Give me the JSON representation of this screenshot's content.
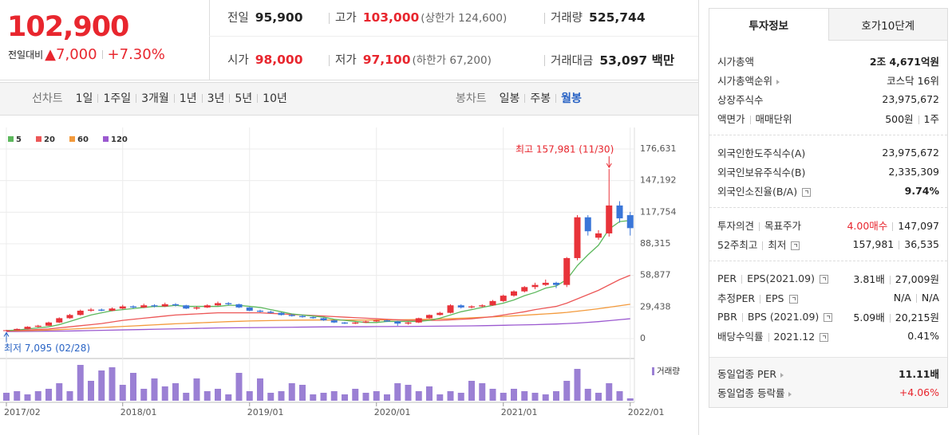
{
  "header": {
    "price": "102,900",
    "change_label": "전일대비",
    "change": "▲7,000",
    "change_pct": "+7.30%",
    "up_color": "#e8262e",
    "cells": [
      [
        {
          "label": "전일",
          "value": "95,900",
          "color": "#222"
        },
        {
          "label": "고가",
          "value": "103,000",
          "sub": "(상한가 124,600)",
          "color": "#e8262e"
        },
        {
          "label": "거래량",
          "value": "525,744",
          "color": "#222"
        }
      ],
      [
        {
          "label": "시가",
          "value": "98,000",
          "color": "#e8262e"
        },
        {
          "label": "저가",
          "value": "97,100",
          "sub": "(하한가 67,200)",
          "color": "#e8262e"
        },
        {
          "label": "거래대금",
          "value": "53,097 백만",
          "color": "#222"
        }
      ]
    ]
  },
  "toolbar": {
    "line_label": "선차트",
    "line_periods": [
      "1일",
      "1주일",
      "3개월",
      "1년",
      "3년",
      "5년",
      "10년"
    ],
    "candle_label": "봉차트",
    "candle_periods": [
      "일봉",
      "주봉",
      "월봉"
    ],
    "active_candle": 2
  },
  "side": {
    "tabs": [
      "투자정보",
      "호가10단계"
    ],
    "active_tab": 0,
    "sections": [
      [
        {
          "label": [
            "시가총액"
          ],
          "value": [
            "2조 4,671억원"
          ],
          "bold": true
        },
        {
          "label": [
            "시가총액순위"
          ],
          "arrow": true,
          "value": [
            "코스닥 16위"
          ]
        },
        {
          "label": [
            "상장주식수"
          ],
          "value": [
            "23,975,672"
          ]
        },
        {
          "label": [
            "액면가",
            "매매단위"
          ],
          "value": [
            "500원",
            "1주"
          ]
        }
      ],
      [
        {
          "label": [
            "외국인한도주식수(A)"
          ],
          "value": [
            "23,975,672"
          ]
        },
        {
          "label": [
            "외국인보유주식수(B)"
          ],
          "value": [
            "2,335,309"
          ]
        },
        {
          "label": [
            "외국인소진율(B/A)"
          ],
          "help": true,
          "value": [
            "9.74%"
          ],
          "bold": true
        }
      ],
      [
        {
          "label": [
            "투자의견",
            "목표주가"
          ],
          "value": [
            "4.00매수",
            "147,097"
          ],
          "color": "#e8262e"
        },
        {
          "label": [
            "52주최고",
            "최저"
          ],
          "help": true,
          "value": [
            "157,981",
            "36,535"
          ]
        }
      ],
      [
        {
          "label": [
            "PER",
            "EPS(2021.09)"
          ],
          "help": true,
          "value": [
            "3.81배",
            "27,009원"
          ]
        },
        {
          "label": [
            "추정PER",
            "EPS"
          ],
          "help": true,
          "value": [
            "N/A",
            "N/A"
          ]
        },
        {
          "label": [
            "PBR",
            "BPS (2021.09)"
          ],
          "help": true,
          "value": [
            "5.09배",
            "20,215원"
          ]
        },
        {
          "label": [
            "배당수익률",
            "2021.12"
          ],
          "help": true,
          "value": [
            "0.41%"
          ]
        }
      ]
    ],
    "footer": [
      {
        "label": [
          "동일업종 PER"
        ],
        "arrow": true,
        "value": [
          "11.11배"
        ],
        "bold": true
      },
      {
        "label": [
          "동일업종 등락률"
        ],
        "arrow": true,
        "value": [
          "+4.06%"
        ],
        "color": "#e8262e"
      }
    ]
  },
  "chart_data": {
    "type": "candlestick",
    "categories": [
      "2017/02",
      null,
      null,
      null,
      null,
      null,
      null,
      null,
      null,
      null,
      null,
      "2018/01",
      null,
      null,
      null,
      null,
      null,
      null,
      null,
      null,
      null,
      null,
      null,
      "2019/01",
      null,
      null,
      null,
      null,
      null,
      null,
      null,
      null,
      null,
      null,
      null,
      "2020/01",
      null,
      null,
      null,
      null,
      null,
      null,
      null,
      null,
      null,
      null,
      null,
      "2021/01",
      null,
      null,
      null,
      null,
      null,
      null,
      null,
      null,
      null,
      null,
      null,
      "2022/01"
    ],
    "candles": [
      [
        7500,
        8200,
        7095,
        7800
      ],
      [
        7800,
        9500,
        7600,
        9000
      ],
      [
        9000,
        11500,
        8800,
        11000
      ],
      [
        11000,
        12800,
        10500,
        12000
      ],
      [
        12000,
        15800,
        11800,
        15000
      ],
      [
        15000,
        19800,
        14500,
        19000
      ],
      [
        19000,
        23000,
        18500,
        22000
      ],
      [
        22000,
        27000,
        21500,
        26000
      ],
      [
        26000,
        28500,
        25000,
        27000
      ],
      [
        27000,
        28000,
        25500,
        26000
      ],
      [
        26000,
        29000,
        25500,
        28000
      ],
      [
        28000,
        31500,
        27500,
        30000
      ],
      [
        30000,
        31000,
        28000,
        29000
      ],
      [
        29000,
        32500,
        28500,
        31000
      ],
      [
        31000,
        32000,
        29000,
        30000
      ],
      [
        30000,
        33500,
        29500,
        32000
      ],
      [
        32000,
        33000,
        30000,
        31000
      ],
      [
        31000,
        31500,
        27500,
        28000
      ],
      [
        28000,
        30000,
        27000,
        29000
      ],
      [
        29000,
        32000,
        28500,
        31000
      ],
      [
        31000,
        34500,
        30500,
        33000
      ],
      [
        33000,
        34000,
        31000,
        32000
      ],
      [
        32000,
        32500,
        28500,
        29000
      ],
      [
        29000,
        29500,
        25500,
        26000
      ],
      [
        26000,
        27000,
        24500,
        25000
      ],
      [
        25000,
        26000,
        23500,
        24000
      ],
      [
        24000,
        24500,
        21500,
        22000
      ],
      [
        22000,
        23000,
        20500,
        21000
      ],
      [
        21000,
        22000,
        19500,
        20000
      ],
      [
        20000,
        20500,
        18500,
        19000
      ],
      [
        19000,
        19500,
        16500,
        17000
      ],
      [
        17000,
        17500,
        14500,
        15000
      ],
      [
        15000,
        15500,
        13500,
        14000
      ],
      [
        14000,
        15500,
        13500,
        15000
      ],
      [
        15000,
        16500,
        14500,
        16000
      ],
      [
        16000,
        17500,
        15500,
        17000
      ],
      [
        17000,
        17500,
        15500,
        16000
      ],
      [
        16000,
        16500,
        12000,
        14000
      ],
      [
        14000,
        15500,
        13000,
        15000
      ],
      [
        15000,
        19500,
        14500,
        19000
      ],
      [
        19000,
        22500,
        18500,
        22000
      ],
      [
        22000,
        25000,
        21500,
        24000
      ],
      [
        24000,
        32000,
        23500,
        31000
      ],
      [
        31000,
        32000,
        28000,
        29000
      ],
      [
        29000,
        31000,
        28000,
        30000
      ],
      [
        30000,
        32000,
        29000,
        31000
      ],
      [
        31000,
        36000,
        30500,
        35000
      ],
      [
        35000,
        41000,
        34000,
        40000
      ],
      [
        40000,
        45000,
        39000,
        44000
      ],
      [
        44000,
        49000,
        43000,
        48000
      ],
      [
        48000,
        52000,
        46000,
        50000
      ],
      [
        50000,
        55000,
        49000,
        52000
      ],
      [
        52000,
        53000,
        47000,
        50000
      ],
      [
        50000,
        76000,
        48000,
        75000
      ],
      [
        75000,
        115000,
        73000,
        113000
      ],
      [
        113000,
        115000,
        96000,
        100000
      ],
      [
        94000,
        101000,
        92000,
        98000
      ],
      [
        98000,
        157981,
        95000,
        124000
      ],
      [
        124000,
        128000,
        108000,
        112000
      ],
      [
        115000,
        118000,
        96000,
        102900
      ]
    ],
    "up_color": "#e8333a",
    "down_color": "#3a76d8",
    "series": [
      {
        "name": "5",
        "color": "#5cb85c",
        "values": [
          7500,
          8000,
          9000,
          10000,
          11000,
          13000,
          16000,
          19000,
          22000,
          24000,
          26000,
          27000,
          28000,
          29000,
          30000,
          30000,
          31000,
          30000,
          30000,
          30000,
          30000,
          31000,
          31000,
          30000,
          29000,
          27000,
          25000,
          23000,
          22000,
          21000,
          20000,
          18000,
          17000,
          16000,
          15000,
          15000,
          16000,
          16000,
          16000,
          16000,
          17000,
          19000,
          22000,
          25000,
          27000,
          29000,
          31000,
          33000,
          36000,
          40000,
          43000,
          47000,
          49000,
          55000,
          68000,
          78000,
          87000,
          102000,
          109000,
          110000
        ]
      },
      {
        "name": "20",
        "color": "#ec5757",
        "values": [
          7000,
          7500,
          8000,
          8500,
          9000,
          10000,
          11000,
          12000,
          13000,
          14000,
          15500,
          17000,
          18000,
          19000,
          20000,
          21000,
          22000,
          22500,
          23000,
          23500,
          24000,
          24000,
          24000,
          24000,
          24000,
          23500,
          23000,
          22500,
          22000,
          21500,
          21000,
          20500,
          20000,
          19500,
          19000,
          18500,
          18000,
          17500,
          17000,
          17000,
          17000,
          17000,
          17500,
          18000,
          18500,
          19500,
          20500,
          22000,
          23500,
          25000,
          27000,
          28500,
          30000,
          33000,
          37000,
          41000,
          45000,
          50000,
          55000,
          59000
        ]
      },
      {
        "name": "60",
        "color": "#f39a3c",
        "values": [
          7000,
          7200,
          7400,
          7600,
          8000,
          8400,
          8800,
          9300,
          9800,
          10300,
          10800,
          11300,
          11800,
          12300,
          12800,
          13300,
          13800,
          14200,
          14600,
          15000,
          15400,
          15800,
          16100,
          16400,
          16600,
          16800,
          17000,
          17100,
          17200,
          17300,
          17300,
          17300,
          17300,
          17300,
          17300,
          17300,
          17400,
          17500,
          17600,
          17800,
          18000,
          18300,
          18600,
          19000,
          19400,
          19800,
          20200,
          20700,
          21200,
          21800,
          22400,
          23000,
          23600,
          24400,
          25500,
          26600,
          27800,
          29200,
          30600,
          32000
        ]
      },
      {
        "name": "120",
        "color": "#9b59d0",
        "values": [
          6500,
          6600,
          6700,
          6800,
          6900,
          7000,
          7100,
          7300,
          7500,
          7700,
          7900,
          8100,
          8300,
          8500,
          8700,
          8900,
          9100,
          9300,
          9500,
          9700,
          9900,
          10000,
          10100,
          10200,
          10300,
          10400,
          10500,
          10600,
          10700,
          10800,
          10900,
          11000,
          11000,
          11100,
          11100,
          11200,
          11200,
          11300,
          11300,
          11400,
          11500,
          11600,
          11700,
          11800,
          11900,
          12000,
          12200,
          12400,
          12600,
          12800,
          13000,
          13300,
          13600,
          14000,
          14500,
          15100,
          15800,
          16700,
          17600,
          18500
        ]
      }
    ],
    "volume": {
      "name": "거래량",
      "color": "#9b80d4",
      "values": [
        10,
        12,
        8,
        12,
        15,
        22,
        12,
        45,
        25,
        38,
        42,
        20,
        35,
        15,
        28,
        18,
        22,
        10,
        28,
        12,
        15,
        8,
        35,
        12,
        28,
        10,
        12,
        22,
        20,
        8,
        10,
        12,
        8,
        15,
        10,
        12,
        8,
        22,
        20,
        12,
        18,
        8,
        12,
        10,
        25,
        22,
        15,
        10,
        15,
        12,
        10,
        8,
        12,
        25,
        40,
        15,
        10,
        22,
        12,
        3
      ]
    },
    "ylim": [
      0,
      176631
    ],
    "yticks": [
      0,
      {
        "value": 29438,
        "label": "29,438"
      },
      {
        "value": 58877,
        "label": "58,877"
      },
      {
        "value": 88315,
        "label": "88,315"
      },
      {
        "value": 117754,
        "label": "117,754"
      },
      {
        "value": 147192,
        "label": "147,192"
      },
      {
        "value": 176631,
        "label": "176,631"
      }
    ],
    "grid": true,
    "high_label": "최고 157,981 (11/30)",
    "high_color": "#e8262e",
    "low_label": "최저 7,095 (02/28)",
    "low_color": "#2a64c5"
  }
}
